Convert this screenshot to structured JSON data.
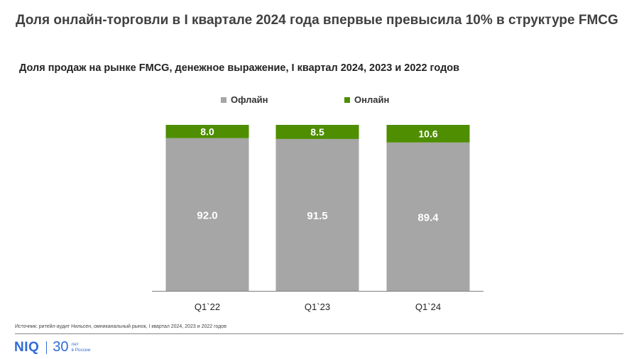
{
  "header": {
    "title": "Доля онлайн-торговли в I квартале 2024 года впервые превысила 10% в структуре FMCG"
  },
  "chart_data": {
    "type": "bar",
    "stacked": true,
    "title": "Доля продаж на рынке FMCG, денежное выражение, I квартал 2024, 2023 и 2022 годов",
    "categories": [
      "Q1`22",
      "Q1`23",
      "Q1`24"
    ],
    "series": [
      {
        "name": "Офлайн",
        "color": "#a6a6a6",
        "values": [
          92.0,
          91.5,
          89.4
        ],
        "labels": [
          "92.0",
          "91.5",
          "89.4"
        ],
        "label_color": "#ffffff"
      },
      {
        "name": "Онлайн",
        "color": "#4e8e00",
        "values": [
          8.0,
          8.5,
          10.6
        ],
        "labels": [
          "8.0",
          "8.5",
          "10.6"
        ],
        "label_color": "#ffffff"
      }
    ],
    "ylim": [
      0,
      100
    ],
    "grid": false,
    "legend_position": "top"
  },
  "footer": {
    "source": "Источник: ритейл-аудит Нильсен, омниканальный рынок, I квартал 2024, 2023 и 2022 годов",
    "logo_text": "NIQ",
    "logo_years": "30",
    "logo_sub_1": "лет",
    "logo_sub_2": "в России"
  }
}
